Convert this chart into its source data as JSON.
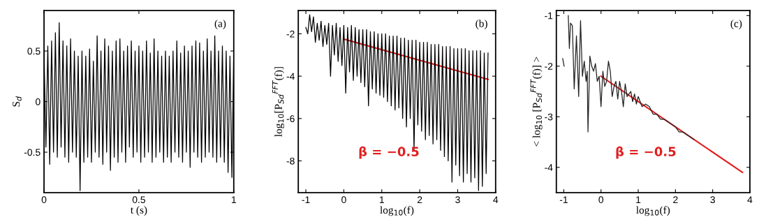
{
  "chart_data": [
    {
      "type": "line",
      "xlabel": "t (s)",
      "ylabel": "S$_{d}$",
      "annotations": [
        "(a)"
      ],
      "xlim": [
        0,
        1
      ],
      "ylim": [
        -0.9,
        0.9
      ],
      "xticks": [
        0,
        0.5,
        1
      ],
      "yticks": [
        -0.5,
        0,
        0.5
      ],
      "grid": false,
      "legend": false,
      "x": [
        0,
        0.01,
        0.02,
        0.03,
        0.04,
        0.05,
        0.06,
        0.07,
        0.08,
        0.09,
        0.1,
        0.11,
        0.12,
        0.13,
        0.14,
        0.15,
        0.16,
        0.17,
        0.18,
        0.19,
        0.2,
        0.21,
        0.22,
        0.23,
        0.24,
        0.25,
        0.26,
        0.27,
        0.28,
        0.29,
        0.3,
        0.31,
        0.32,
        0.33,
        0.34,
        0.35,
        0.36,
        0.37,
        0.38,
        0.39,
        0.4,
        0.41,
        0.42,
        0.43,
        0.44,
        0.45,
        0.46,
        0.47,
        0.48,
        0.49,
        0.5,
        0.51,
        0.52,
        0.53,
        0.54,
        0.55,
        0.56,
        0.57,
        0.58,
        0.59,
        0.6,
        0.61,
        0.62,
        0.63,
        0.64,
        0.65,
        0.66,
        0.67,
        0.68,
        0.69,
        0.7,
        0.71,
        0.72,
        0.73,
        0.74,
        0.75,
        0.76,
        0.77,
        0.78,
        0.79,
        0.8,
        0.81,
        0.82,
        0.83,
        0.84,
        0.85,
        0.86,
        0.87,
        0.88,
        0.89,
        0.9,
        0.91,
        0.92,
        0.93,
        0.94,
        0.95,
        0.96,
        0.97,
        0.98,
        0.99,
        1
      ],
      "series": [
        {
          "color": "#000000",
          "values": [
            0.5,
            -0.45,
            0.55,
            -0.62,
            0.6,
            -0.5,
            0.68,
            -0.55,
            0.78,
            -0.45,
            0.6,
            -0.55,
            0.55,
            -0.6,
            0.62,
            -0.5,
            0.5,
            -0.55,
            0.45,
            -0.88,
            0.5,
            -0.6,
            0.45,
            -0.55,
            0.52,
            -0.6,
            0.4,
            -0.5,
            0.65,
            -0.55,
            0.5,
            -0.62,
            0.62,
            -0.5,
            0.55,
            -0.68,
            0.5,
            -0.55,
            0.6,
            -0.6,
            0.62,
            -0.5,
            0.5,
            -0.6,
            0.55,
            -0.45,
            0.6,
            -0.55,
            0.5,
            -0.5,
            0.55,
            -0.6,
            0.5,
            -0.55,
            0.6,
            -0.5,
            0.48,
            -0.6,
            0.62,
            -0.55,
            0.5,
            -0.5,
            0.45,
            -0.6,
            0.5,
            -0.55,
            0.45,
            -0.6,
            0.5,
            -0.5,
            0.6,
            -0.55,
            0.48,
            -0.6,
            0.55,
            -0.5,
            0.5,
            -0.65,
            0.55,
            -0.5,
            0.6,
            -0.55,
            0.58,
            -0.6,
            0.5,
            -0.55,
            0.62,
            -0.5,
            0.5,
            -0.55,
            0.65,
            -0.6,
            0.5,
            -0.55,
            0.55,
            -0.6,
            0.5,
            -0.7,
            0.45,
            -0.75,
            0.5
          ]
        }
      ]
    },
    {
      "type": "line",
      "xlabel": "log$_{10}$(f)",
      "ylabel": "log$_{10}$[P$_{Sd}$$^{FFT}$(f)]",
      "annotations": [
        "(b)"
      ],
      "xlim": [
        -1.2,
        4
      ],
      "ylim": [
        -9.5,
        -0.9
      ],
      "xticks": [
        -1,
        0,
        1,
        2,
        3,
        4
      ],
      "yticks": [
        -8,
        -6,
        -4,
        -2
      ],
      "grid": false,
      "legend": false,
      "series": [
        {
          "color": "#000000",
          "x": [
            -1.0,
            -0.95,
            -0.9,
            -0.85,
            -0.8,
            -0.75,
            -0.7,
            -0.65,
            -0.6,
            -0.55,
            -0.5,
            -0.45,
            -0.4,
            -0.35,
            -0.3,
            -0.25,
            -0.2,
            -0.15,
            -0.1,
            -0.05,
            0.0,
            0.05,
            0.1,
            0.15,
            0.2,
            0.25,
            0.3,
            0.35,
            0.4,
            0.45,
            0.5,
            0.55,
            0.6,
            0.65,
            0.7,
            0.75,
            0.8,
            0.85,
            0.9,
            0.95,
            1.0,
            1.05,
            1.1,
            1.15,
            1.2,
            1.25,
            1.3,
            1.35,
            1.4,
            1.45,
            1.5,
            1.55,
            1.6,
            1.65,
            1.7,
            1.75,
            1.8,
            1.85,
            1.9,
            1.95,
            2.0,
            2.05,
            2.1,
            2.15,
            2.2,
            2.25,
            2.3,
            2.35,
            2.4,
            2.45,
            2.5,
            2.55,
            2.6,
            2.65,
            2.7,
            2.75,
            2.8,
            2.85,
            2.9,
            2.95,
            3.0,
            3.05,
            3.1,
            3.15,
            3.2,
            3.25,
            3.3,
            3.35,
            3.4,
            3.45,
            3.5,
            3.55,
            3.6,
            3.65,
            3.7,
            3.75,
            3.8
          ],
          "values": [
            -1.7,
            -2.0,
            -1.1,
            -1.9,
            -1.2,
            -2.4,
            -1.5,
            -2.3,
            -1.4,
            -2.6,
            -1.6,
            -2.5,
            -1.5,
            -4.0,
            -1.6,
            -3.0,
            -1.5,
            -3.3,
            -1.7,
            -3.5,
            -1.6,
            -4.8,
            -1.7,
            -3.8,
            -1.6,
            -4.2,
            -1.7,
            -4.0,
            -1.8,
            -4.3,
            -1.8,
            -4.5,
            -1.8,
            -5.4,
            -1.9,
            -4.6,
            -1.9,
            -4.8,
            -2.0,
            -4.9,
            -2.0,
            -5.0,
            -2.0,
            -5.2,
            -2.1,
            -5.4,
            -2.1,
            -5.6,
            -2.1,
            -5.5,
            -2.2,
            -6.0,
            -2.2,
            -6.4,
            -2.3,
            -6.0,
            -2.3,
            -7.5,
            -2.3,
            -6.3,
            -2.4,
            -6.6,
            -2.4,
            -7.0,
            -2.4,
            -6.8,
            -2.5,
            -7.2,
            -2.5,
            -7.0,
            -2.5,
            -7.5,
            -2.6,
            -7.8,
            -2.6,
            -8.0,
            -2.6,
            -9.0,
            -2.7,
            -8.2,
            -2.7,
            -8.7,
            -2.7,
            -9.0,
            -2.7,
            -8.6,
            -2.8,
            -9.0,
            -2.8,
            -8.8,
            -2.8,
            -9.4,
            -2.8,
            -9.2,
            -2.9,
            -8.6,
            -2.9
          ]
        },
        {
          "name": "β = −0.5",
          "color": "#e02020",
          "x": [
            0,
            3.8
          ],
          "values": [
            -2.25,
            -4.15
          ]
        }
      ]
    },
    {
      "type": "line",
      "xlabel": "log$_{10}$(f)",
      "ylabel": "< log$_{10}$ [P$_{Sd}$$^{FFT}$(f)] >",
      "annotations": [
        "(c)"
      ],
      "xlim": [
        -1.2,
        4
      ],
      "ylim": [
        -4.5,
        -0.9
      ],
      "xticks": [
        -1,
        0,
        1,
        2,
        3,
        4
      ],
      "yticks": [
        -4,
        -3,
        -2,
        -1
      ],
      "grid": false,
      "legend": false,
      "series": [
        {
          "color": "#202020",
          "x": [
            -1.03,
            -0.99,
            -0.94,
            -0.88,
            -0.85,
            -0.82,
            -0.77,
            -0.72,
            -0.66,
            -0.6,
            -0.55,
            -0.5,
            -0.45,
            -0.4,
            -0.37,
            -0.35,
            -0.3,
            -0.25,
            -0.2,
            -0.15,
            -0.1,
            -0.05,
            0.0,
            0.05,
            0.1,
            0.15,
            0.2,
            0.25,
            0.3,
            0.35,
            0.4,
            0.45,
            0.5,
            0.55,
            0.6,
            0.65,
            0.7,
            0.8,
            0.85,
            0.9,
            0.95,
            1.0,
            1.1,
            1.2,
            1.3,
            1.4,
            1.5,
            1.6,
            1.7,
            1.8,
            1.9,
            2.0,
            2.1,
            2.2,
            2.3,
            2.5
          ],
          "values": [
            -1.85,
            -2.0,
            null,
            -1.0,
            -1.65,
            -1.15,
            -1.2,
            -2.45,
            -1.4,
            -2.6,
            -1.1,
            -2.2,
            -1.9,
            -2.3,
            -2.1,
            -3.3,
            -1.8,
            -2.0,
            -2.1,
            -1.95,
            -2.3,
            -2.2,
            -2.8,
            -2.1,
            -2.4,
            -2.3,
            -1.9,
            -2.1,
            -2.6,
            -2.4,
            -2.3,
            -2.65,
            -2.3,
            -2.5,
            -2.8,
            -2.35,
            -2.6,
            -2.5,
            -2.7,
            -2.55,
            -2.75,
            -2.6,
            -2.8,
            -2.75,
            -2.8,
            -2.95,
            -2.95,
            -3.05,
            -3.05,
            -3.1,
            -3.15,
            -3.2,
            -3.3,
            -3.3,
            -3.35,
            -3.45
          ]
        },
        {
          "name": "β = −0.5",
          "color": "#e02020",
          "x": [
            0,
            3.8
          ],
          "values": [
            -2.2,
            -4.1
          ]
        }
      ]
    }
  ]
}
